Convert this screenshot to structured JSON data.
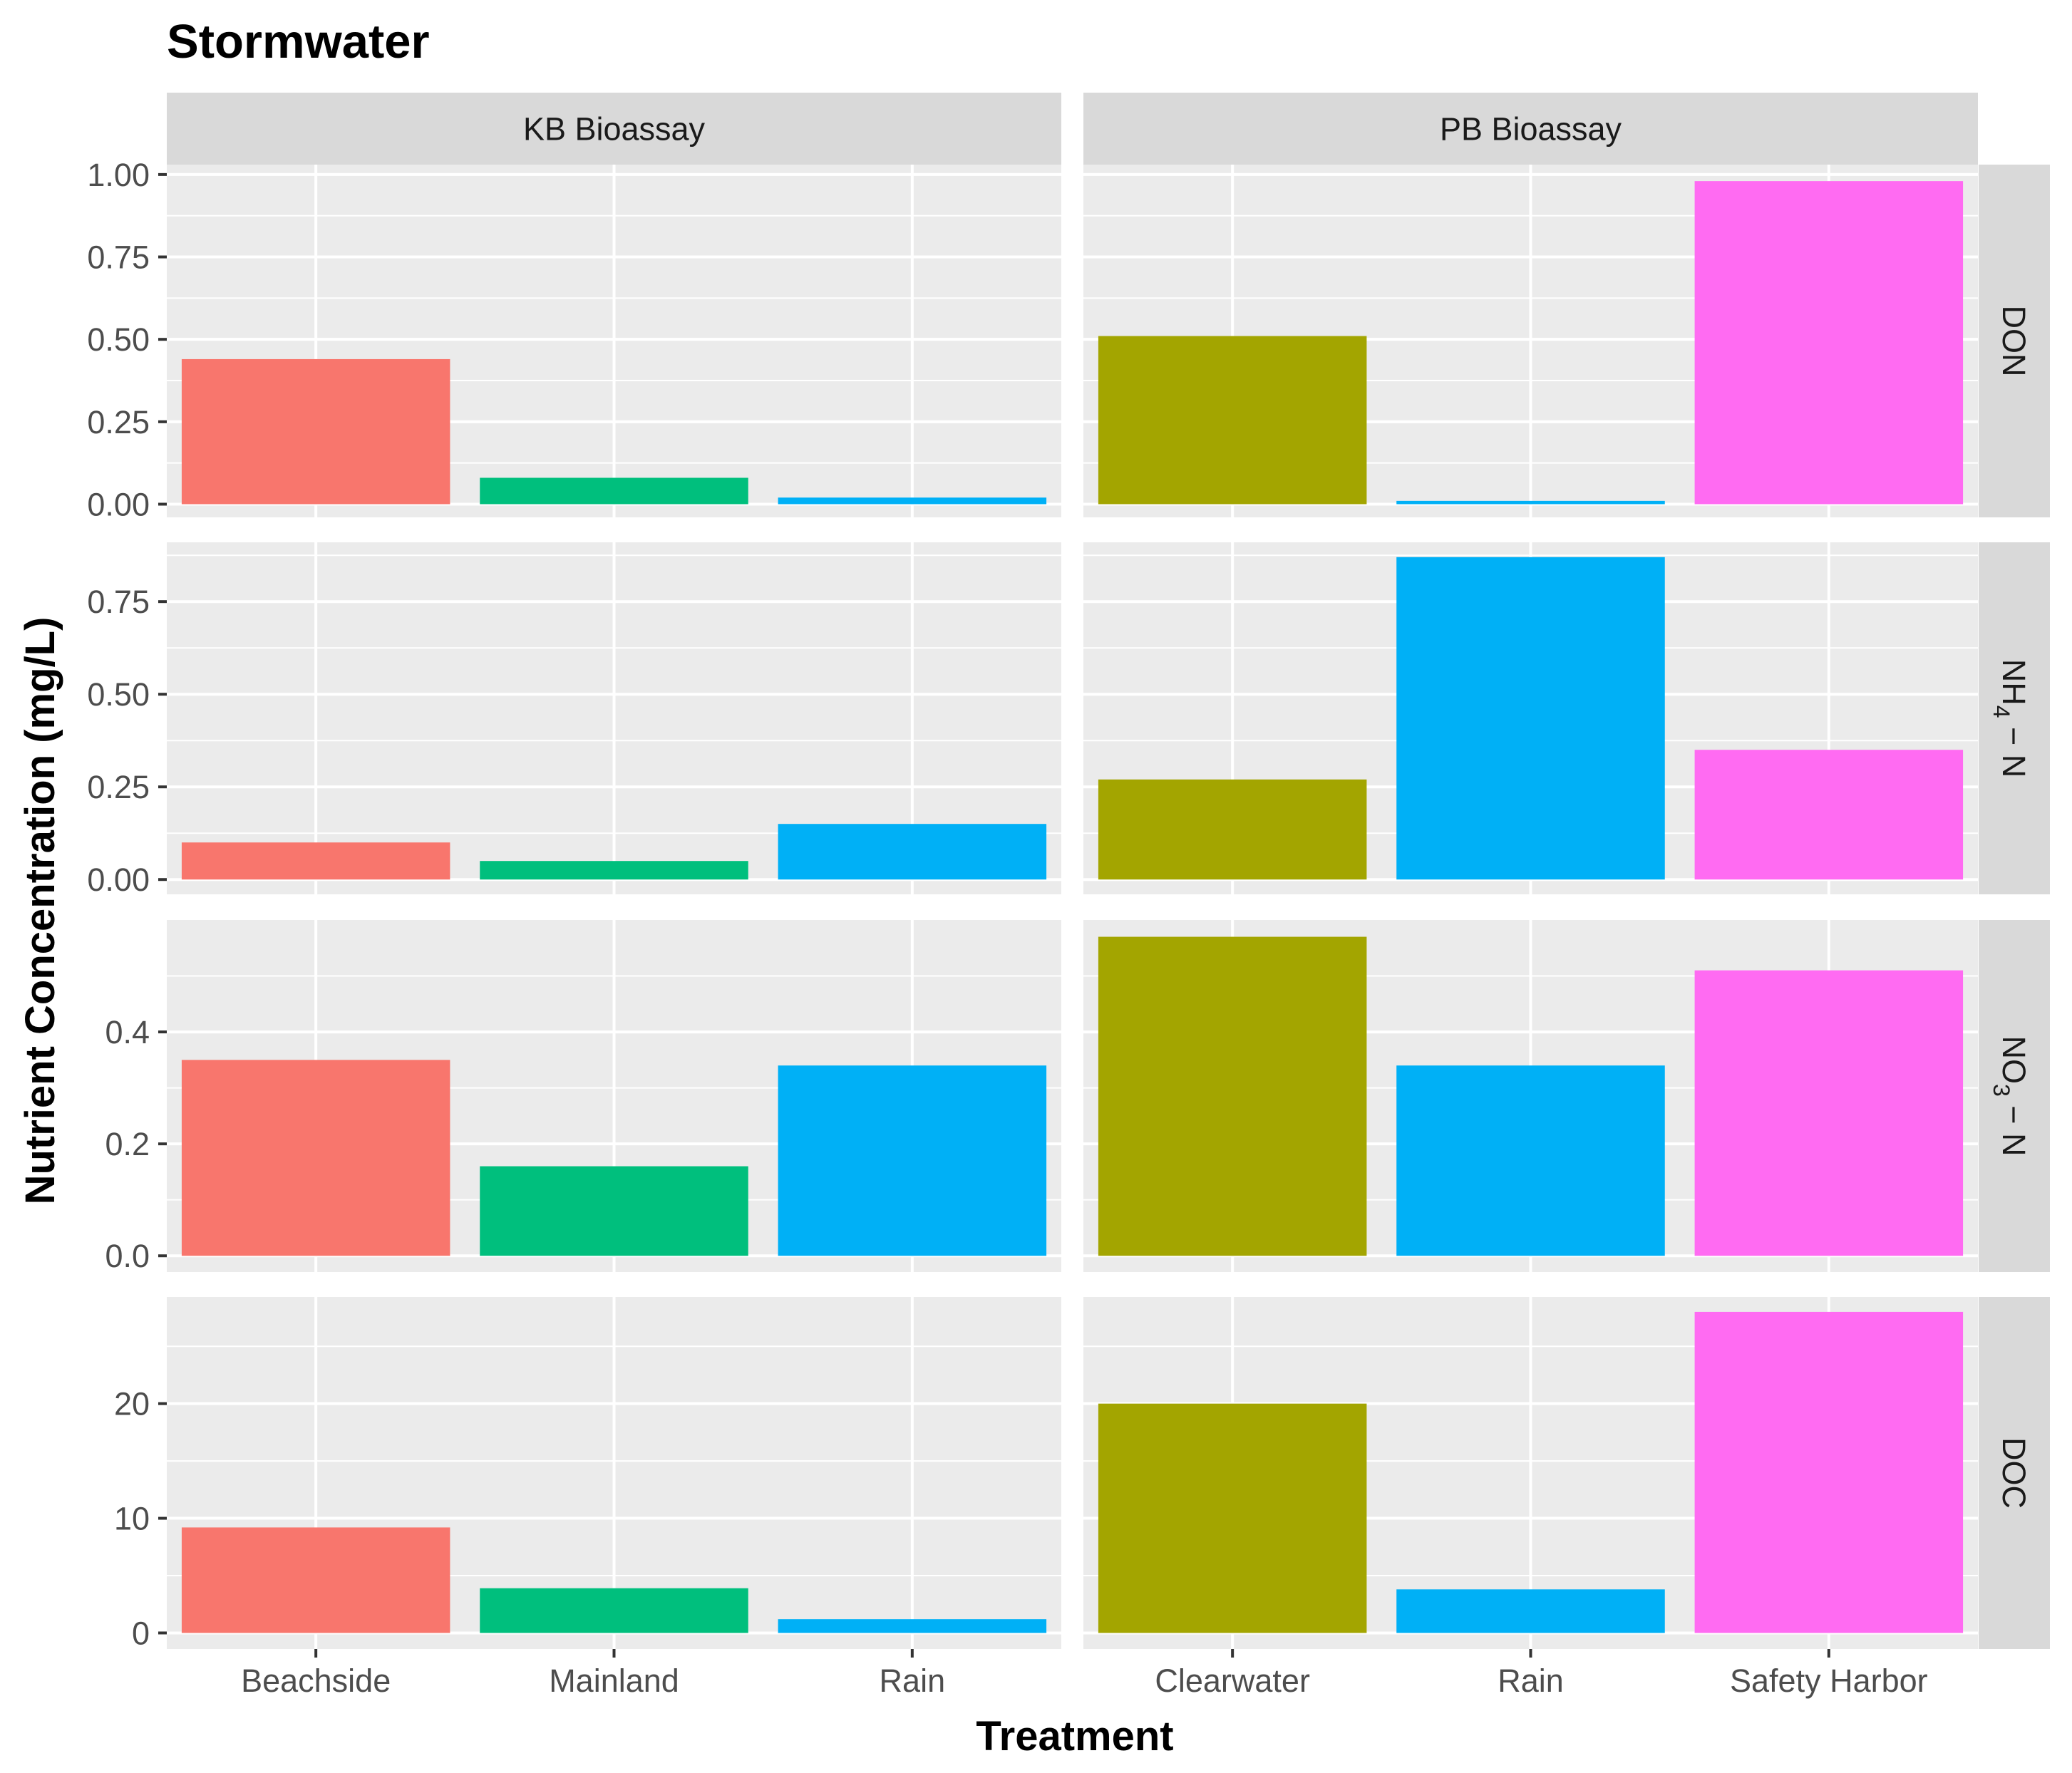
{
  "chart_data": {
    "type": "bar",
    "title": "Stormwater",
    "xlabel": "Treatment",
    "ylabel": "Nutrient Concentration (mg/L)",
    "facet_columns": [
      {
        "label": "KB Bioassay",
        "categories": [
          "Beachside",
          "Mainland",
          "Rain"
        ],
        "colors": [
          "#F8766D",
          "#00BF7D",
          "#00B0F6"
        ]
      },
      {
        "label": "PB Bioassay",
        "categories": [
          "Clearwater",
          "Rain",
          "Safety Harbor"
        ],
        "colors": [
          "#A3A500",
          "#00B0F6",
          "#FF6BF2"
        ]
      }
    ],
    "facet_rows": [
      {
        "label": "DON",
        "label_sub": "",
        "label_end": "",
        "ylim": [
          -0.04,
          1.03
        ],
        "ticks": [
          "0.00",
          "0.25",
          "0.50",
          "0.75",
          "1.00"
        ],
        "values": [
          [
            0.44,
            0.08,
            0.02
          ],
          [
            0.51,
            0.01,
            0.98
          ]
        ]
      },
      {
        "label": "NH",
        "label_sub": "4",
        "label_end": " − N",
        "ylim": [
          -0.04,
          0.91
        ],
        "ticks": [
          "0.00",
          "0.25",
          "0.50",
          "0.75"
        ],
        "values": [
          [
            0.1,
            0.05,
            0.15
          ],
          [
            0.27,
            0.87,
            0.35
          ]
        ]
      },
      {
        "label": "NO",
        "label_sub": "3",
        "label_end": " − N",
        "ylim": [
          -0.029,
          0.6
        ],
        "ticks": [
          "0.0",
          "0.2",
          "0.4"
        ],
        "values": [
          [
            0.35,
            0.16,
            0.34
          ],
          [
            0.57,
            0.34,
            0.51
          ]
        ]
      },
      {
        "label": "DOC",
        "label_sub": "",
        "label_end": "",
        "ylim": [
          -1.4,
          29.3
        ],
        "ticks": [
          "0",
          "10",
          "20"
        ],
        "values": [
          [
            9.2,
            3.9,
            1.2
          ],
          [
            20.0,
            3.8,
            28.0
          ]
        ]
      }
    ]
  }
}
